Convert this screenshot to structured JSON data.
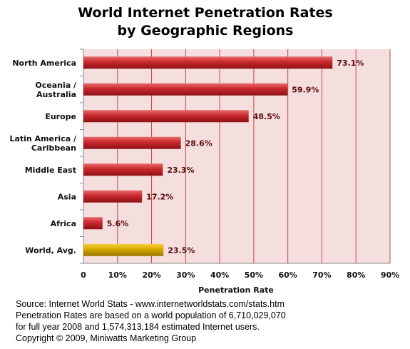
{
  "chart_data": {
    "type": "bar",
    "orientation": "horizontal",
    "title": "World Internet Penetration Rates",
    "subtitle": "by Geographic Regions",
    "xlabel": "Penetration Rate",
    "ylabel": "",
    "categories": [
      [
        "North America"
      ],
      [
        "Oceania  /",
        "Australia"
      ],
      [
        "Europe"
      ],
      [
        "Latin America /",
        "Caribbean"
      ],
      [
        "Middle East"
      ],
      [
        "Asia"
      ],
      [
        "Africa"
      ],
      [
        "World, Avg."
      ]
    ],
    "values": [
      73.1,
      59.9,
      48.5,
      28.6,
      23.3,
      17.2,
      5.6,
      23.5
    ],
    "value_labels": [
      "73.1%",
      "59.9%",
      "48.5%",
      "28.6%",
      "23.3%",
      "17.2%",
      "5.6%",
      "23.5%"
    ],
    "xlim": [
      0,
      90
    ],
    "x_ticks": [
      0,
      10,
      20,
      30,
      40,
      50,
      60,
      70,
      80,
      90
    ],
    "x_tick_labels": [
      "0",
      "10%",
      "20%",
      "30%",
      "40%",
      "50%",
      "60%",
      "70%",
      "80%",
      "90%"
    ],
    "grid": true,
    "legend": "none",
    "colors": {
      "bar": "#c8282c",
      "bar_highlight": "#d8a800",
      "plot_background": "#f4dede",
      "grid": "#c04848"
    }
  },
  "source_text": [
    "Source: Internet World Stats - www.internetworldstats.com/stats.htm",
    "Penetration Rates are based on a world population of 6,710,029,070",
    "for full year 2008 and 1,574,313,184 estimated Internet users.",
    "Copyright © 2009, Miniwatts Marketing Group"
  ]
}
